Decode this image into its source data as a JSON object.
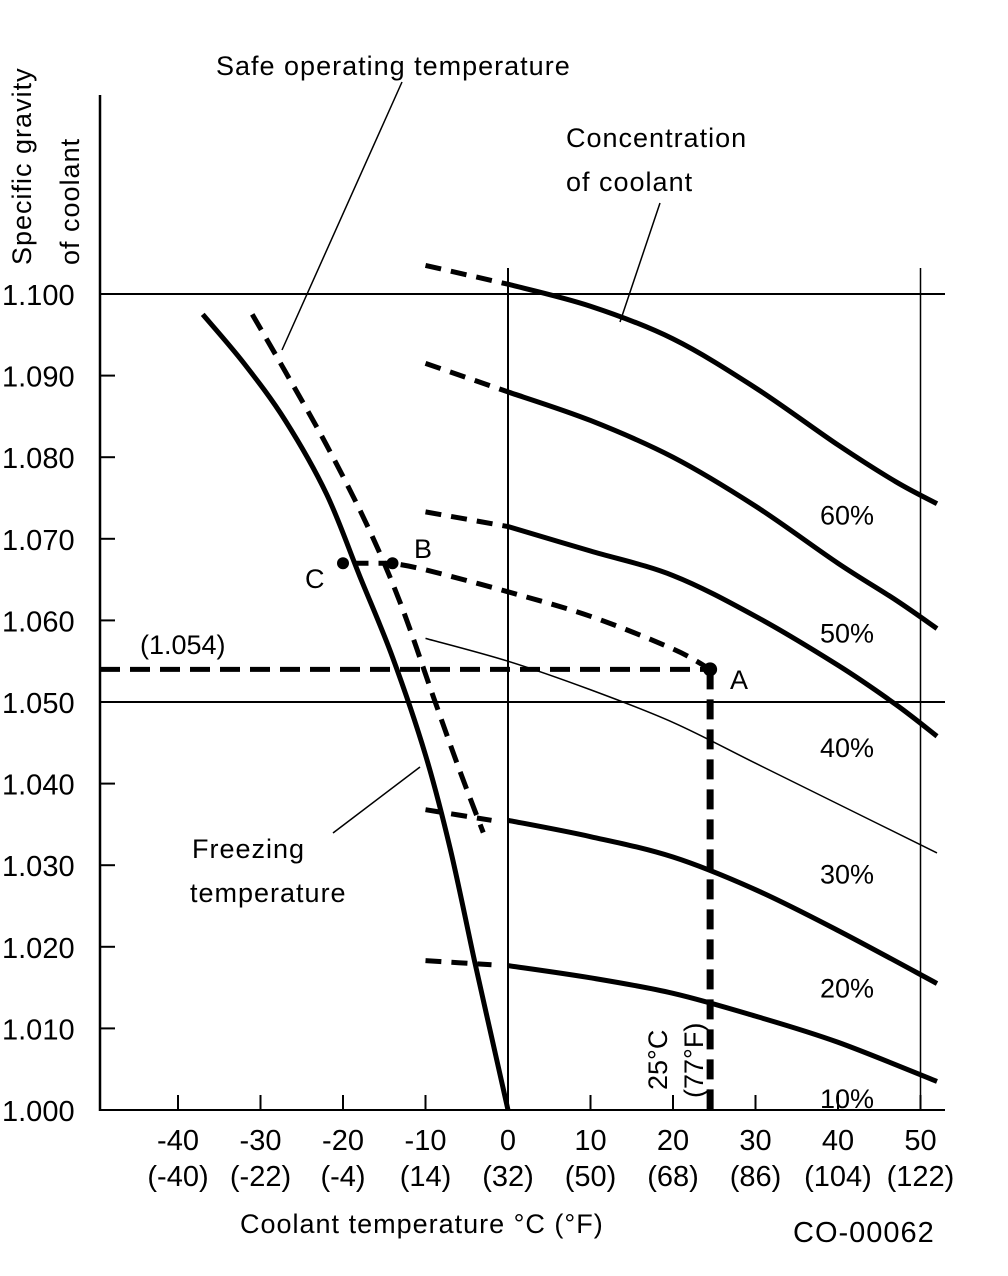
{
  "chart_data": {
    "type": "line",
    "title": "",
    "figure_id": "CO-00062",
    "xlabel": "Coolant temperature °C (°F)",
    "ylabel_lines": [
      "Specific gravity",
      "of coolant"
    ],
    "xlim": [
      -50,
      53
    ],
    "ylim": [
      1.0,
      1.1
    ],
    "x_ticks": [
      {
        "c": -40,
        "label": "-40",
        "f_label": "(-40)"
      },
      {
        "c": -30,
        "label": "-30",
        "f_label": "(-22)"
      },
      {
        "c": -20,
        "label": "-20",
        "f_label": "(-4)"
      },
      {
        "c": -10,
        "label": "-10",
        "f_label": "(14)"
      },
      {
        "c": 0,
        "label": "0",
        "f_label": "(32)"
      },
      {
        "c": 10,
        "label": "10",
        "f_label": "(50)"
      },
      {
        "c": 20,
        "label": "20",
        "f_label": "(68)"
      },
      {
        "c": 30,
        "label": "30",
        "f_label": "(86)"
      },
      {
        "c": 40,
        "label": "40",
        "f_label": "(104)"
      },
      {
        "c": 50,
        "label": "50",
        "f_label": "(122)"
      }
    ],
    "y_ticks": [
      {
        "v": 1.1,
        "label": "1.100"
      },
      {
        "v": 1.09,
        "label": "1.090"
      },
      {
        "v": 1.08,
        "label": "1.080"
      },
      {
        "v": 1.07,
        "label": "1.070"
      },
      {
        "v": 1.06,
        "label": "1.060"
      },
      {
        "v": 1.05,
        "label": "1.050"
      },
      {
        "v": 1.04,
        "label": "1.040"
      },
      {
        "v": 1.03,
        "label": "1.030"
      },
      {
        "v": 1.02,
        "label": "1.020"
      },
      {
        "v": 1.01,
        "label": "1.010"
      },
      {
        "v": 1.0,
        "label": "1.000"
      }
    ],
    "reference_lines": {
      "horizontal": [
        1.1,
        1.05
      ],
      "vertical": [
        0,
        50
      ]
    },
    "concentration_series": [
      {
        "name": "60%",
        "dashed": [
          [
            -10,
            1.1035
          ],
          [
            0,
            1.1012
          ]
        ],
        "solid": [
          [
            0,
            1.1012
          ],
          [
            10,
            1.0985
          ],
          [
            20,
            1.0945
          ],
          [
            30,
            1.0885
          ],
          [
            40,
            1.0815
          ],
          [
            47,
            1.077
          ],
          [
            52,
            1.0743
          ]
        ],
        "label_at": [
          40,
          1.073
        ]
      },
      {
        "name": "50%",
        "dashed": [
          [
            -10,
            1.0915
          ],
          [
            0,
            1.088
          ]
        ],
        "solid": [
          [
            0,
            1.088
          ],
          [
            10,
            1.0845
          ],
          [
            20,
            1.08
          ],
          [
            30,
            1.074
          ],
          [
            40,
            1.067
          ],
          [
            47,
            1.0625
          ],
          [
            52,
            1.059
          ]
        ],
        "label_at": [
          40,
          1.0585
        ]
      },
      {
        "name": "40%",
        "dashed": [
          [
            -10,
            1.0733
          ],
          [
            0,
            1.0715
          ]
        ],
        "solid": [
          [
            0,
            1.0715
          ],
          [
            10,
            1.0685
          ],
          [
            20,
            1.0655
          ],
          [
            30,
            1.0605
          ],
          [
            40,
            1.0545
          ],
          [
            47,
            1.0497
          ],
          [
            52,
            1.0458
          ]
        ],
        "label_at": [
          40,
          1.0445
        ]
      },
      {
        "name": "30%",
        "dashed": [],
        "solid": [
          [
            -10,
            1.0578
          ],
          [
            0,
            1.055
          ],
          [
            10,
            1.0515
          ],
          [
            20,
            1.0475
          ],
          [
            30,
            1.0425
          ],
          [
            40,
            1.0375
          ],
          [
            52,
            1.0315
          ]
        ],
        "thin": true,
        "label_at": [
          40,
          1.029
        ]
      },
      {
        "name": "20%",
        "dashed": [
          [
            -10,
            1.0368
          ],
          [
            -2,
            1.0355
          ]
        ],
        "solid": [
          [
            0,
            1.0355
          ],
          [
            10,
            1.0335
          ],
          [
            20,
            1.031
          ],
          [
            30,
            1.027
          ],
          [
            40,
            1.022
          ],
          [
            52,
            1.0155
          ]
        ],
        "label_at": [
          40,
          1.015
        ]
      },
      {
        "name": "10%",
        "dashed": [
          [
            -10,
            1.0183
          ],
          [
            -2,
            1.0178
          ]
        ],
        "solid": [
          [
            0,
            1.0177
          ],
          [
            10,
            1.0162
          ],
          [
            20,
            1.0143
          ],
          [
            30,
            1.0115
          ],
          [
            40,
            1.0083
          ],
          [
            52,
            1.0035
          ]
        ],
        "label_at": [
          40,
          1.0015
        ]
      }
    ],
    "freezing_curve": {
      "name": "Freezing temperature",
      "points": [
        [
          -37,
          1.0975
        ],
        [
          -32,
          1.0915
        ],
        [
          -27,
          1.0845
        ],
        [
          -22,
          1.0755
        ],
        [
          -18,
          1.0655
        ],
        [
          -14,
          1.0555
        ],
        [
          -10,
          1.0435
        ],
        [
          -7,
          1.032
        ],
        [
          -4,
          1.018
        ],
        [
          -2,
          1.009
        ],
        [
          0,
          1.0
        ]
      ]
    },
    "safe_operating_curve": {
      "name": "Safe operating temperature",
      "points": [
        [
          -31,
          1.0975
        ],
        [
          -27,
          1.0905
        ],
        [
          -22,
          1.0815
        ],
        [
          -17,
          1.0715
        ],
        [
          -13,
          1.062
        ],
        [
          -9,
          1.0505
        ],
        [
          -6,
          1.042
        ],
        [
          -3,
          1.034
        ]
      ]
    },
    "example": {
      "point_A": {
        "label": "A",
        "temp_c": 24.5,
        "sg": 1.054
      },
      "point_B": {
        "label": "B",
        "temp_c": -14,
        "sg": 1.067
      },
      "point_C": {
        "label": "C",
        "temp_c": -20,
        "sg": 1.067
      },
      "sg_reading_label": "(1.054)",
      "temp_reading_label_c": "25°C",
      "temp_reading_label_f": "(77°F)",
      "path_A_to_B": [
        [
          24.5,
          1.054
        ],
        [
          20,
          1.0565
        ],
        [
          10,
          1.0605
        ],
        [
          0,
          1.0635
        ],
        [
          -10,
          1.0662
        ],
        [
          -14,
          1.067
        ]
      ]
    },
    "annotations": {
      "safe_operating": "Safe operating temperature",
      "concentration_line1": "Concentration",
      "concentration_line2": "of coolant",
      "freezing_line1": "Freezing",
      "freezing_line2": "temperature"
    }
  }
}
